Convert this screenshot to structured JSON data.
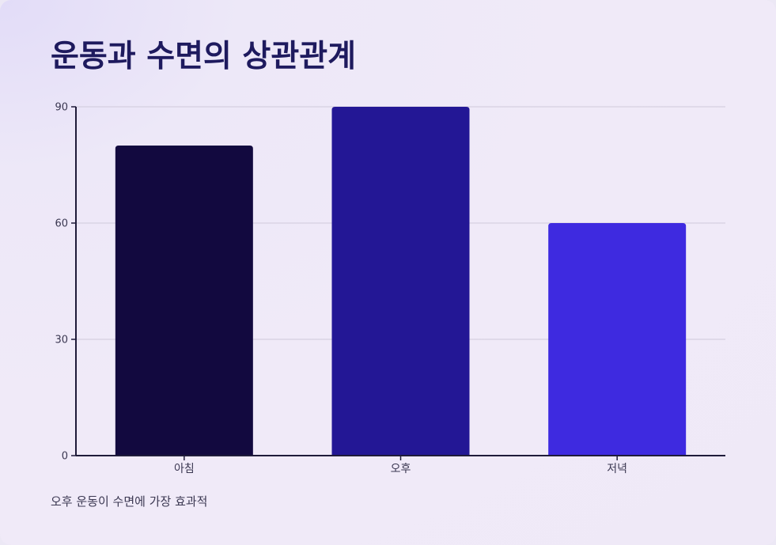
{
  "title": "운동과 수면의 상관관계",
  "caption": "오후 운동이 수면에 가장 효과적",
  "chart_data": {
    "type": "bar",
    "categories": [
      "아침",
      "오후",
      "저녁"
    ],
    "values": [
      80,
      90,
      60
    ],
    "colors": [
      "#12093f",
      "#231795",
      "#3e2ae0"
    ],
    "ylim": [
      0,
      90
    ],
    "yticks": [
      0,
      30,
      60,
      90
    ],
    "grid": true,
    "xlabel": "",
    "ylabel": ""
  },
  "colors": {
    "title": "#1e1a5e",
    "axis": "#1f1b3a",
    "grid": "#cfc9da",
    "text": "#3b3852"
  }
}
